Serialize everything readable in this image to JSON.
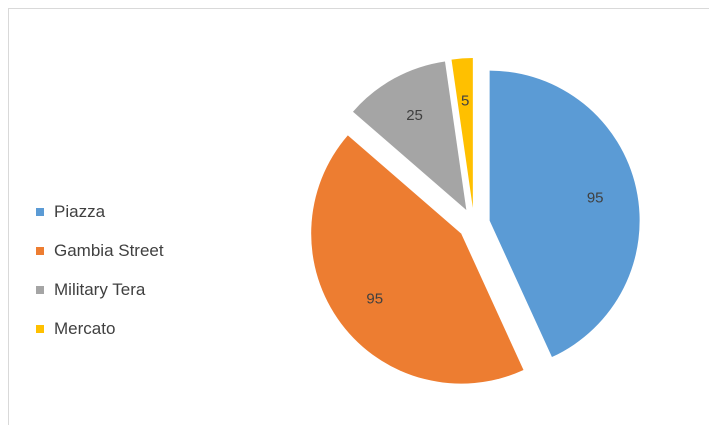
{
  "chart_data": {
    "type": "pie",
    "title": "",
    "exploded": true,
    "legend_position": "left",
    "slices": [
      {
        "label": "Piazza",
        "value": 95,
        "color": "#5b9bd5"
      },
      {
        "label": "Gambia Street",
        "value": 95,
        "color": "#ed7d31"
      },
      {
        "label": "Military Tera",
        "value": 25,
        "color": "#a5a5a5"
      },
      {
        "label": "Mercato",
        "value": 5,
        "color": "#ffc000"
      }
    ]
  }
}
